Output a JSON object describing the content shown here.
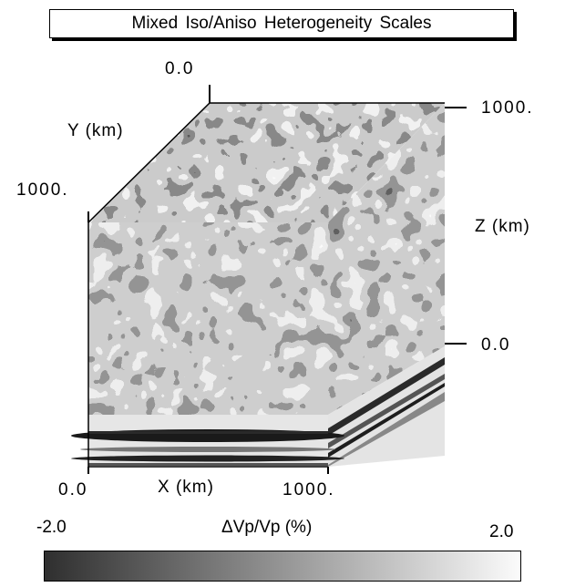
{
  "title": "Mixed Iso/Aniso Heterogeneity Scales",
  "axes": {
    "y_label": "Y (km)",
    "y_min": "0.0",
    "y_max": "1000.",
    "z_label": "Z (km)",
    "z_top": "1000.",
    "z_bottom": "0.0",
    "x_label": "X (km)",
    "x_min": "0.0",
    "x_max": "1000."
  },
  "colorbar": {
    "label": "ΔVp/Vp (%)",
    "min": "-2.0",
    "max": "2.0",
    "colors": [
      "#2f2f2f",
      "#fbfbfb"
    ]
  }
}
